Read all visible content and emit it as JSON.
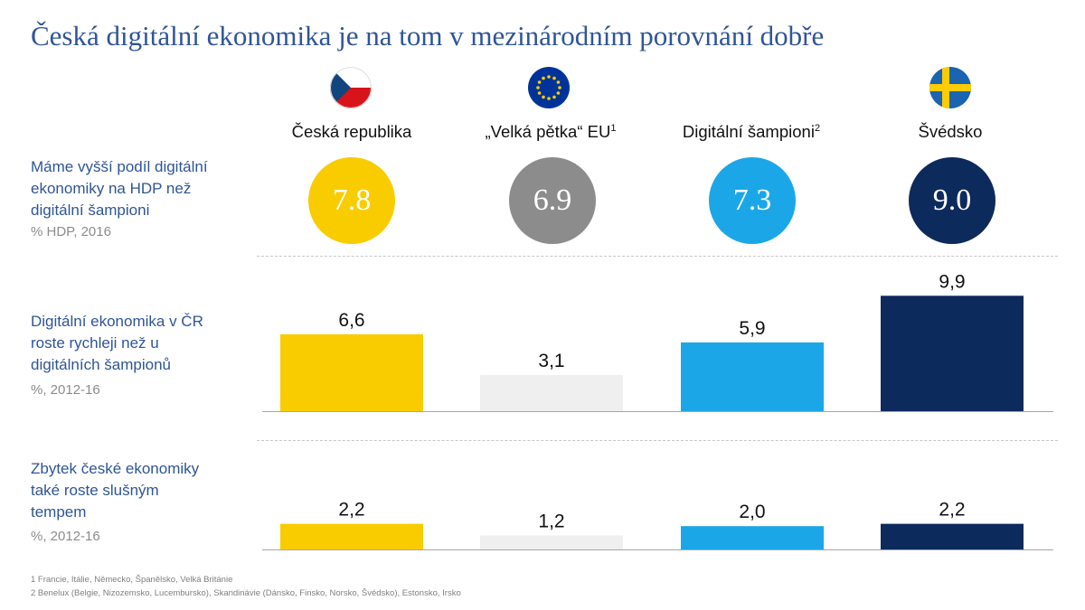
{
  "title": "Česká digitální ekonomika je na tom v mezinárodním porovnání dobře",
  "columns": [
    {
      "label": "Česká republika",
      "sup": "",
      "flag": "czech-flag-icon",
      "color": "#f9cc00",
      "text_color": "#ffffff"
    },
    {
      "label": "„Velká pětka“ EU",
      "sup": "1",
      "flag": "eu-flag-icon",
      "color": "#8c8c8c",
      "text_color": "#ffffff"
    },
    {
      "label": "Digitální šampioni",
      "sup": "2",
      "flag": "",
      "color": "#1ba7e7",
      "text_color": "#ffffff"
    },
    {
      "label": "Švédsko",
      "sup": "",
      "flag": "sweden-flag-icon",
      "color": "#0d2a5c",
      "text_color": "#ffffff"
    }
  ],
  "row1": {
    "label_lines": [
      "Máme vyšší podíl digitální",
      "ekonomiky na HDP než",
      "digitální šampioni"
    ],
    "unit": "% HDP, 2016",
    "values": [
      "7.8",
      "6.9",
      "7.3",
      "9.0"
    ]
  },
  "row2": {
    "label_lines": [
      "Digitální ekonomika v ČR",
      "roste rychleji než u",
      "digitálních šampionů"
    ],
    "unit": "%, 2012-16"
  },
  "row3": {
    "label_lines": [
      "Zbytek české ekonomiky",
      "také roste slušným",
      "tempem"
    ],
    "unit": "%, 2012-16"
  },
  "chart_data": [
    {
      "type": "bar",
      "categories": [
        "Česká republika",
        "„Velká pětka“ EU",
        "Digitální šampioni",
        "Švédsko"
      ],
      "values": [
        6.6,
        3.1,
        5.9,
        9.9
      ],
      "labels": [
        "6,6",
        "3,1",
        "5,9",
        "9,9"
      ],
      "colors": [
        "#f9cc00",
        "#efefef",
        "#1ba7e7",
        "#0d2a5c"
      ],
      "ylim": [
        0,
        10
      ]
    },
    {
      "type": "bar",
      "categories": [
        "Česká republika",
        "„Velká pětka“ EU",
        "Digitální šampioni",
        "Švédsko"
      ],
      "values": [
        2.2,
        1.2,
        2.0,
        2.2
      ],
      "labels": [
        "2,2",
        "1,2",
        "2,0",
        "2,2"
      ],
      "colors": [
        "#f9cc00",
        "#efefef",
        "#1ba7e7",
        "#0d2a5c"
      ],
      "ylim": [
        0,
        10
      ]
    }
  ],
  "footnotes": [
    "1 Francie, Itálie, Německo, Španělsko, Velká Británie",
    "2 Benelux (Belgie, Nizozemsko, Lucembursko), Skandinávie (Dánsko, Finsko, Norsko, Švédsko), Estonsko, Irsko"
  ]
}
